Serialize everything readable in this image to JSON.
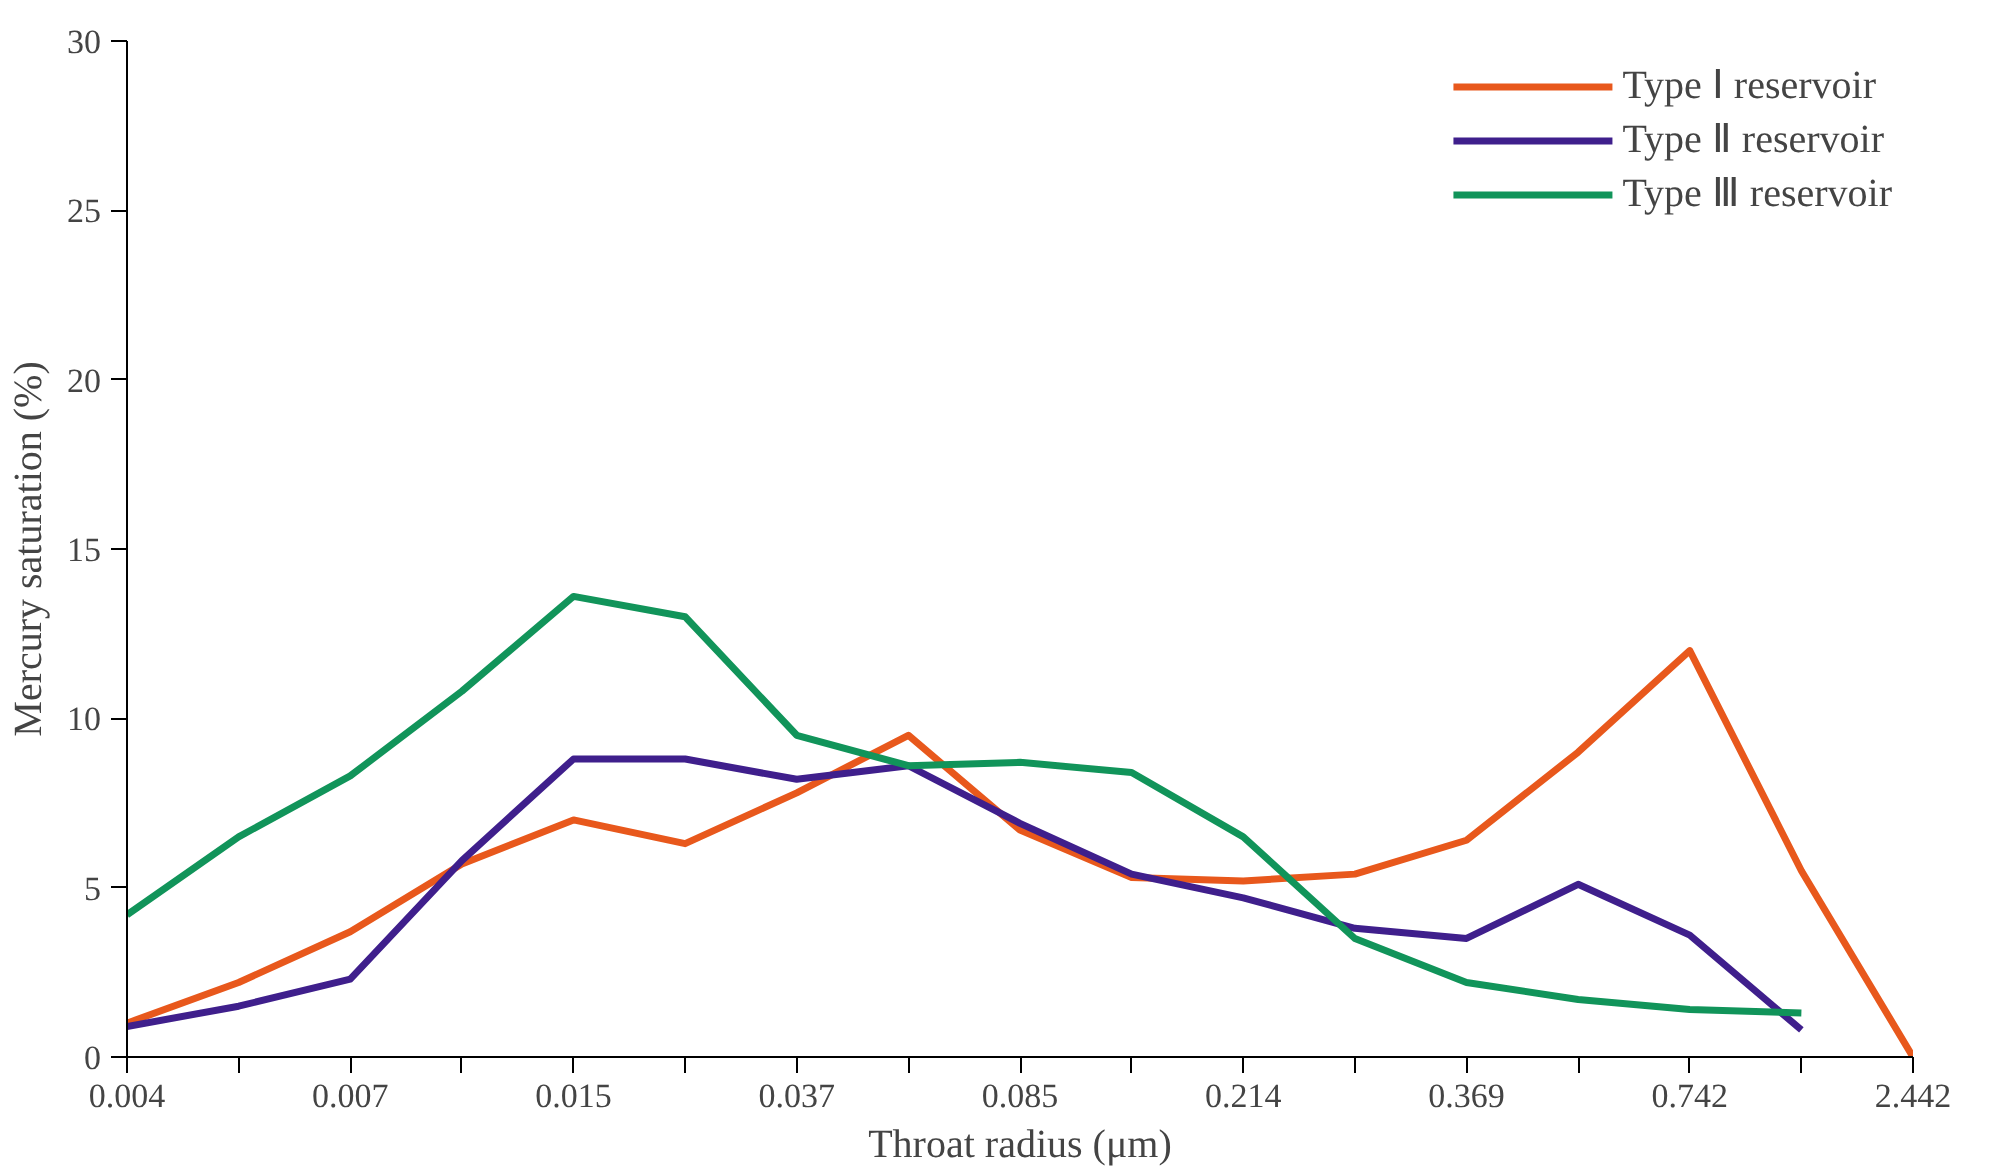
{
  "chart_data": {
    "type": "line",
    "xlabel": "Throat radius (μm)",
    "ylabel": "Mercury saturation (%)",
    "categories": [
      "0.004",
      null,
      "0.007",
      null,
      "0.015",
      null,
      "0.037",
      null,
      "0.085",
      null,
      "0.214",
      null,
      "0.369",
      null,
      "0.742",
      null,
      "2.442"
    ],
    "ylim": [
      0,
      30
    ],
    "yticks": [
      0,
      5,
      10,
      15,
      20,
      25,
      30
    ],
    "grid": false,
    "legend": "top right",
    "marker": "none",
    "line_style": "solid",
    "series": [
      {
        "name": "Type Ⅰ reservoir",
        "color": "#e8581c",
        "values": [
          1.0,
          2.2,
          3.7,
          5.7,
          7.0,
          6.3,
          7.8,
          9.5,
          6.7,
          5.3,
          5.2,
          5.4,
          6.4,
          9.0,
          12.0,
          5.5,
          0
        ]
      },
      {
        "name": "Type Ⅱ reservoir",
        "color": "#3f1f8c",
        "values": [
          0.9,
          1.5,
          2.3,
          5.8,
          8.8,
          8.8,
          8.2,
          8.6,
          6.9,
          5.4,
          4.7,
          3.8,
          3.5,
          5.1,
          3.6,
          0.8,
          null
        ]
      },
      {
        "name": "Type Ⅲ reservoir",
        "color": "#11945a",
        "values": [
          4.2,
          6.5,
          8.3,
          10.8,
          13.6,
          13.0,
          9.5,
          8.6,
          8.7,
          8.4,
          6.5,
          3.5,
          2.2,
          1.7,
          1.4,
          1.3,
          null
        ]
      }
    ]
  }
}
